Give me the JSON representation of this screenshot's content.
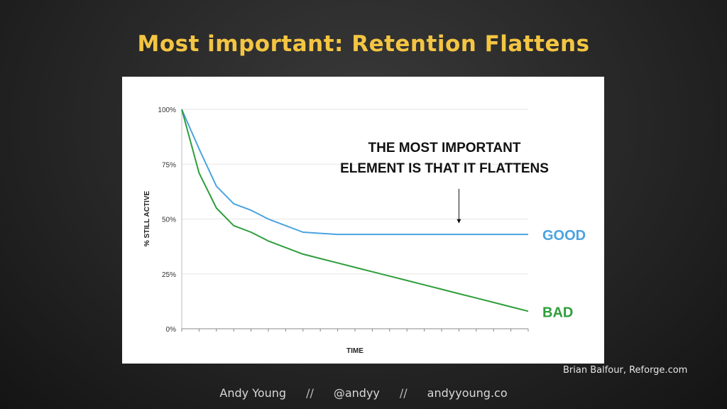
{
  "slide": {
    "title": "Most important: Retention Flattens",
    "credit": "Brian Balfour, Reforge.com",
    "footer": {
      "name": "Andy Young",
      "separator": "//",
      "handle": "@andyy",
      "site": "andyyoung.co"
    }
  },
  "chart_data": {
    "type": "line",
    "title": "",
    "xlabel": "TIME",
    "ylabel": "% STILL ACTIVE",
    "ylim": [
      0,
      100
    ],
    "yticks": [
      "0%",
      "25%",
      "50%",
      "75%",
      "100%"
    ],
    "ytick_values": [
      0,
      25,
      50,
      75,
      100
    ],
    "x": [
      0,
      1,
      2,
      3,
      4,
      5,
      6,
      7,
      8,
      9,
      10,
      11,
      12,
      13,
      14,
      15,
      16,
      17,
      18,
      19,
      20
    ],
    "grid": true,
    "series": [
      {
        "name": "GOOD",
        "color": "#4aa3e0",
        "values": [
          100,
          82,
          65,
          57,
          54,
          50,
          47,
          44,
          43.5,
          43,
          43,
          43,
          43,
          43,
          43,
          43,
          43,
          43,
          43,
          43,
          43
        ]
      },
      {
        "name": "BAD",
        "color": "#2e9e3c",
        "values": [
          100,
          71,
          55,
          47,
          44,
          40,
          37,
          34,
          32,
          30,
          28,
          26,
          24,
          22,
          20,
          18,
          16,
          14,
          12,
          10,
          8
        ]
      }
    ],
    "annotation": {
      "text_line1": "THE MOST IMPORTANT",
      "text_line2": "ELEMENT IS THAT IT FLATTENS",
      "arrow_target_x": 16,
      "arrow_target_y": 48
    }
  }
}
